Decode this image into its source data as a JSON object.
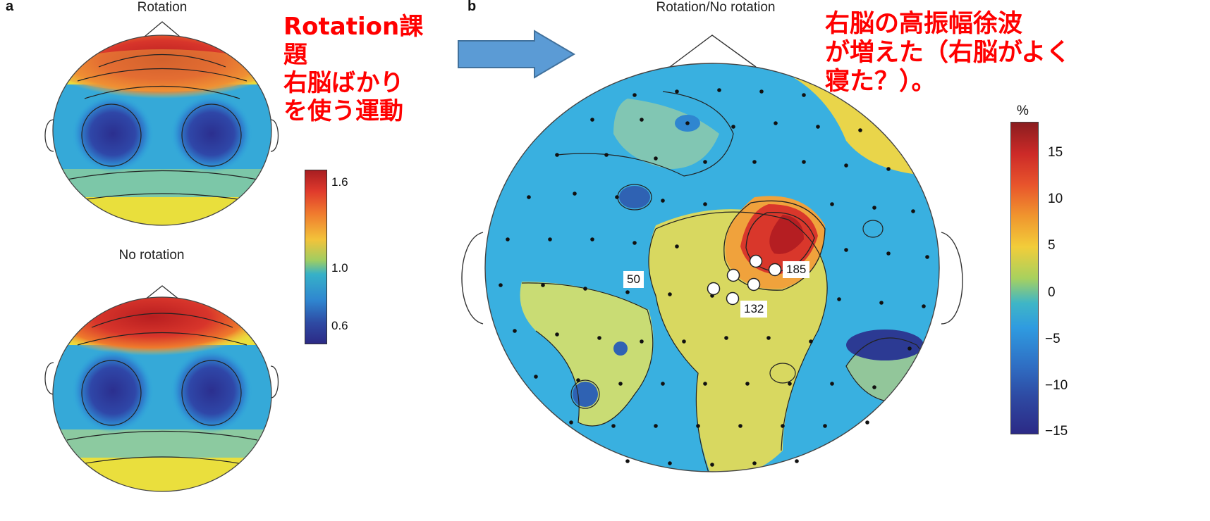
{
  "panel_a": {
    "letter": "a",
    "top_title": "Rotation",
    "bottom_title": "No rotation",
    "colorbar_ticks": [
      "1.6",
      "1.0",
      "0.6"
    ]
  },
  "panel_b": {
    "letter": "b",
    "title": "Rotation/No rotation",
    "colorbar_unit": "%",
    "colorbar_ticks": [
      "15",
      "10",
      "5",
      "0",
      "−5",
      "−10",
      "−15"
    ],
    "electrode_labels": [
      "50",
      "185",
      "132"
    ]
  },
  "annotation_left": {
    "lines": [
      "Rotation課",
      "題",
      "右脳ばかり",
      "を使う運動"
    ]
  },
  "annotation_right": {
    "lines": [
      "右脳の高振幅徐波",
      "が増えた（右脳がよく",
      "寝た？）。"
    ]
  },
  "colors": {
    "annotation_text": "#ff0000",
    "arrow_fill": "#5b9bd5",
    "arrow_stroke": "#41719c"
  },
  "icons": [
    "right-arrow-icon"
  ]
}
